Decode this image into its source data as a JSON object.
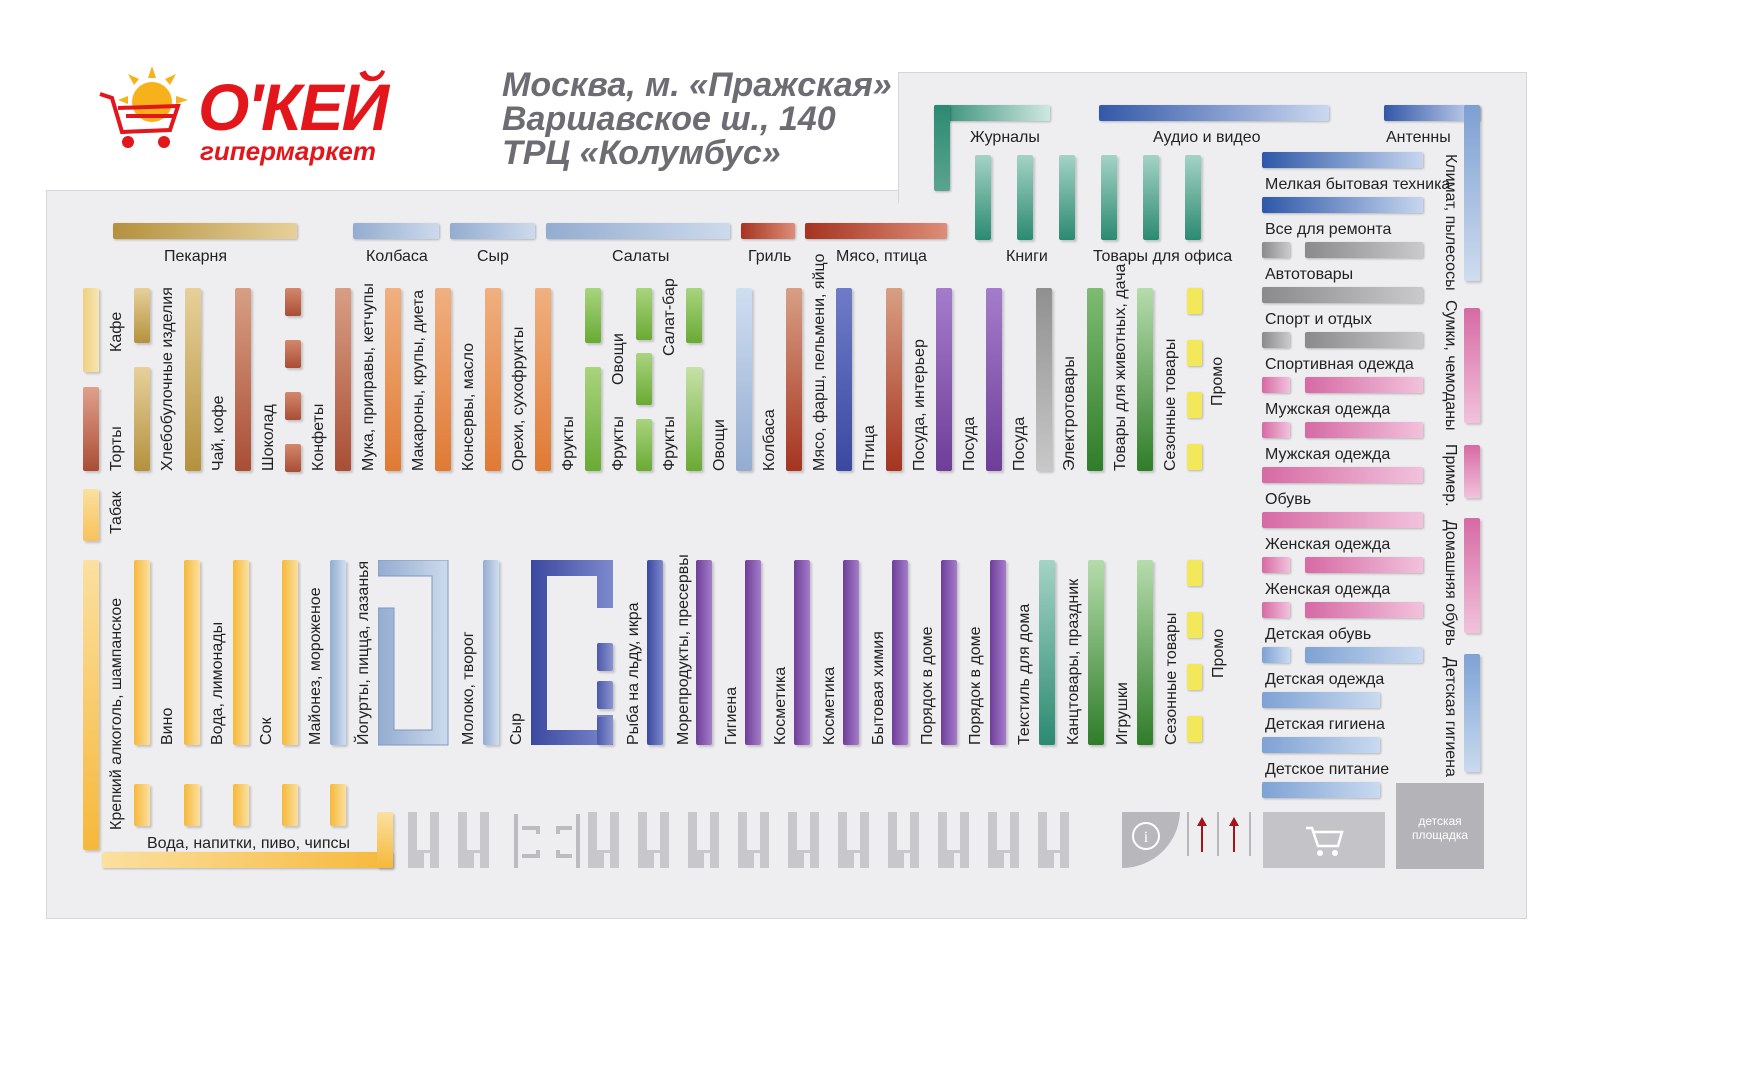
{
  "brand": {
    "name": "О'КЕЙ",
    "subtitle": "гипермаркет"
  },
  "address": {
    "line1": "Москва, м. «Пражская»",
    "line2": "Варшавское ш., 140",
    "line3": "ТРЦ «Колумбус»"
  },
  "colors": {
    "tan": "#c8a452",
    "red": "#b03a22",
    "lightblue": "#a8bfdc",
    "blue": "#3f67b6",
    "teal": "#2e8c74",
    "green": "#79b73f",
    "darkgreen": "#2f7d2a",
    "orange": "#e3883a",
    "brownred": "#b14e3a",
    "purple": "#8a5bb0",
    "violet": "#5a66b0",
    "gray": "#8e8e90",
    "yellow": "#f6c343",
    "lemon": "#f1e45a",
    "pink": "#d96aa6",
    "slate": "#80a4d4",
    "floor": "#eeeef0"
  },
  "top_labels": {
    "bakery": "Пекарня",
    "sausage": "Колбаса",
    "cheese": "Сыр",
    "salads": "Салаты",
    "grill": "Гриль",
    "meat_poultry": "Мясо, птица",
    "books": "Книги",
    "office": "Товары для офиса",
    "magazines": "Журналы",
    "audio_video": "Аудио и видео",
    "antennas": "Антенны"
  },
  "row1": {
    "cafe": "Кафе",
    "cakes": "Торты",
    "tobacco": "Табак",
    "bakery_items": "Хлебобулочные изделия",
    "tea_coffee": "Чай, кофе",
    "chocolate": "Шоколад",
    "candy": "Конфеты",
    "flour": "Мука, приправы, кетчупы",
    "pasta": "Макароны, крупы, диета",
    "canned": "Консервы, масло",
    "nuts": "Орехи, сухофрукты",
    "fruits1": "Фрукты",
    "vegetables1": "Овощи",
    "fruits2": "Фрукты",
    "salad_bar": "Салат-бар",
    "fruits3": "Фрукты",
    "vegetables2": "Овощи",
    "sausage": "Колбаса",
    "meat_mince": "Мясо, фарш, пельмени, яйцо",
    "poultry": "Птица",
    "dishes_interior": "Посуда, интерьер",
    "dishes1": "Посуда",
    "dishes2": "Посуда",
    "electronics": "Электротовары",
    "pets": "Товары для животных, дача",
    "seasonal1": "Сезонные товары",
    "promo1": "Промо"
  },
  "row2": {
    "alcohol": "Крепкий алкоголь, шампанское",
    "wine": "Вино",
    "water_lemonade": "Вода, лимонады",
    "juice": "Сок",
    "mayo": "Майонез, мороженое",
    "yogurt": "Йогурты, пицца, лазанья",
    "milk": "Молоко, творог",
    "cheese": "Сыр",
    "fish": "Рыба на льду, икра",
    "seafood": "Морепродукты, пресервы",
    "hygiene": "Гигиена",
    "cosmetics1": "Косметика",
    "cosmetics2": "Косметика",
    "chemicals": "Бытовая химия",
    "order1": "Порядок в доме",
    "order2": "Порядок в доме",
    "textile": "Текстиль для дома",
    "stationery": "Канцтовары, праздник",
    "toys": "Игрушки",
    "seasonal2": "Сезонные товары",
    "promo2": "Промо",
    "drinks_bottom": "Вода, напитки, пиво, чипсы"
  },
  "right_labels": {
    "small_appliances": "Мелкая бытовая техника",
    "repair": "Все для ремонта",
    "auto": "Автотовары",
    "sport_rest": "Спорт и отдых",
    "sportswear": "Спортивная одежда",
    "menswear1": "Мужская одежда",
    "menswear2": "Мужская одежда",
    "shoes": "Обувь",
    "womenswear1": "Женская одежда",
    "womenswear2": "Женская одежда",
    "kids_shoes": "Детская обувь",
    "kids_clothes": "Детская одежда",
    "kids_hygiene": "Детская гигиена",
    "kids_food": "Детское питание",
    "climate": "Климат, пылесосы",
    "bags": "Сумки, чемоданы",
    "fitting": "Пример.",
    "home_shoes": "Домашняя обувь",
    "kids_hygiene_v": "Детская гигиена",
    "playground": "детская площадка"
  },
  "icons": [
    "info-icon",
    "cart-icon",
    "entrance-arrow-icon",
    "sun-icon"
  ]
}
